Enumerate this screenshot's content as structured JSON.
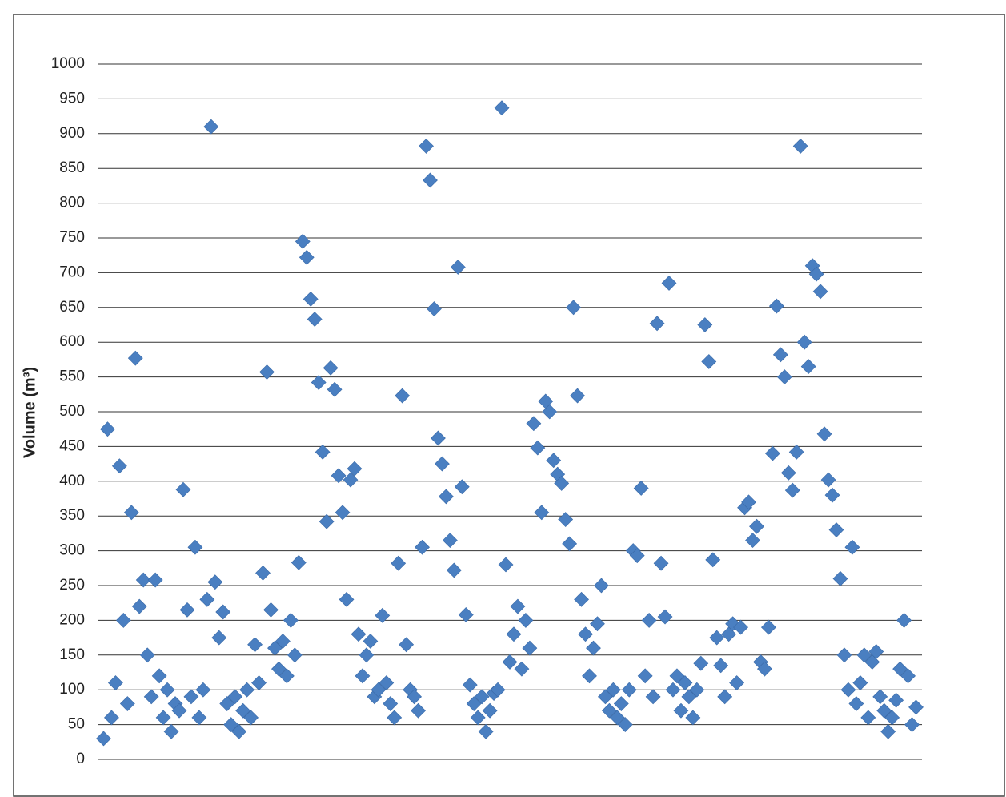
{
  "chart_data": {
    "type": "scatter",
    "y_label": "Volume (m³)",
    "color": "#4a7fc1",
    "grid": true,
    "ylim": [
      0,
      1000
    ],
    "yticks": [
      0,
      50,
      100,
      150,
      200,
      250,
      300,
      350,
      400,
      450,
      500,
      550,
      600,
      650,
      700,
      750,
      800,
      850,
      900,
      950,
      1000
    ],
    "values": [
      30,
      475,
      60,
      110,
      422,
      200,
      80,
      355,
      577,
      220,
      258,
      150,
      90,
      258,
      120,
      60,
      100,
      40,
      80,
      70,
      388,
      215,
      90,
      305,
      60,
      100,
      230,
      910,
      255,
      175,
      212,
      80,
      50,
      90,
      40,
      70,
      100,
      60,
      165,
      110,
      268,
      557,
      215,
      160,
      130,
      170,
      120,
      200,
      150,
      283,
      745,
      722,
      662,
      633,
      542,
      442,
      342,
      563,
      532,
      408,
      355,
      230,
      402,
      418,
      180,
      120,
      150,
      170,
      90,
      100,
      207,
      110,
      80,
      60,
      282,
      523,
      165,
      100,
      90,
      70,
      305,
      882,
      833,
      648,
      462,
      425,
      378,
      315,
      272,
      708,
      392,
      208,
      107,
      80,
      60,
      90,
      40,
      70,
      95,
      100,
      937,
      280,
      140,
      180,
      220,
      130,
      200,
      160,
      483,
      448,
      355,
      515,
      500,
      430,
      410,
      397,
      345,
      310,
      650,
      523,
      230,
      180,
      120,
      160,
      195,
      250,
      90,
      70,
      100,
      60,
      80,
      50,
      100,
      300,
      293,
      390,
      120,
      200,
      90,
      627,
      282,
      205,
      685,
      100,
      120,
      70,
      110,
      90,
      60,
      100,
      138,
      625,
      572,
      287,
      175,
      135,
      90,
      180,
      195,
      110,
      190,
      362,
      370,
      315,
      335,
      140,
      130,
      190,
      440,
      652,
      582,
      550,
      412,
      387,
      442,
      882,
      600,
      565,
      710,
      698,
      673,
      468,
      402,
      380,
      330,
      260,
      150,
      100,
      305,
      80,
      110,
      150,
      60,
      140,
      155,
      90,
      70,
      40,
      60,
      85,
      130,
      200,
      120,
      50,
      75
    ]
  }
}
